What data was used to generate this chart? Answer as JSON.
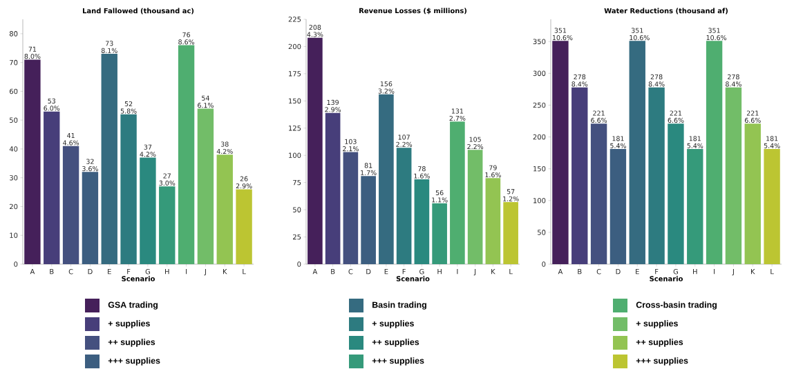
{
  "chart_data": [
    {
      "type": "bar",
      "title": "Land Fallowed (thousand ac)",
      "xlabel": "Scenario",
      "categories": [
        "A",
        "B",
        "C",
        "D",
        "E",
        "F",
        "G",
        "H",
        "I",
        "J",
        "K",
        "L"
      ],
      "ylim": [
        0,
        85
      ],
      "yticks": [
        0,
        10,
        20,
        30,
        40,
        50,
        60,
        70,
        80
      ],
      "legend": "bottom",
      "series": [
        {
          "name": "GSA trading",
          "color": "#45205a",
          "values": [
            71,
            null,
            null,
            null,
            null,
            null,
            null,
            null,
            null,
            null,
            null,
            null
          ],
          "value_labels": [
            "71 8.0%",
            null,
            null,
            null,
            null,
            null,
            null,
            null,
            null,
            null,
            null,
            null
          ]
        },
        {
          "name": "+ supplies",
          "color": "#473e7a",
          "values": [
            null,
            53,
            null,
            null,
            null,
            null,
            null,
            null,
            null,
            null,
            null,
            null
          ],
          "value_labels": [
            null,
            "53 6.0%",
            null,
            null,
            null,
            null,
            null,
            null,
            null,
            null,
            null,
            null
          ]
        },
        {
          "name": "++ supplies",
          "color": "#44507f",
          "values": [
            null,
            null,
            41,
            null,
            null,
            null,
            null,
            null,
            null,
            null,
            null,
            null
          ],
          "value_labels": [
            null,
            null,
            "41 4.6%",
            null,
            null,
            null,
            null,
            null,
            null,
            null,
            null,
            null
          ]
        },
        {
          "name": "+++ supplies",
          "color": "#3c5e80",
          "values": [
            null,
            null,
            null,
            32,
            null,
            null,
            null,
            null,
            null,
            null,
            null,
            null
          ],
          "value_labels": [
            null,
            null,
            null,
            "32 3.6%",
            null,
            null,
            null,
            null,
            null,
            null,
            null,
            null
          ]
        },
        {
          "name": "Basin trading",
          "color": "#356b80",
          "values": [
            null,
            null,
            null,
            null,
            73,
            null,
            null,
            null,
            null,
            null,
            null,
            null
          ],
          "value_labels": [
            null,
            null,
            null,
            null,
            "73 8.1%",
            null,
            null,
            null,
            null,
            null,
            null,
            null
          ]
        },
        {
          "name": "+ supplies",
          "color": "#2d7b80",
          "values": [
            null,
            null,
            null,
            null,
            null,
            52,
            null,
            null,
            null,
            null,
            null,
            null
          ],
          "value_labels": [
            null,
            null,
            null,
            null,
            null,
            "52 5.8%",
            null,
            null,
            null,
            null,
            null,
            null
          ]
        },
        {
          "name": "++ supplies",
          "color": "#2a897f",
          "values": [
            null,
            null,
            null,
            null,
            null,
            null,
            37,
            null,
            null,
            null,
            null,
            null
          ],
          "value_labels": [
            null,
            null,
            null,
            null,
            null,
            null,
            "37 4.2%",
            null,
            null,
            null,
            null,
            null
          ]
        },
        {
          "name": "+++ supplies",
          "color": "#359a7a",
          "values": [
            null,
            null,
            null,
            null,
            null,
            null,
            null,
            27,
            null,
            null,
            null,
            null
          ],
          "value_labels": [
            null,
            null,
            null,
            null,
            null,
            null,
            null,
            "27 3.0%",
            null,
            null,
            null,
            null
          ]
        },
        {
          "name": "Cross-basin trading",
          "color": "#4fae70",
          "values": [
            null,
            null,
            null,
            null,
            null,
            null,
            null,
            null,
            76,
            null,
            null,
            null
          ],
          "value_labels": [
            null,
            null,
            null,
            null,
            null,
            null,
            null,
            null,
            "76 8.6%",
            null,
            null,
            null
          ]
        },
        {
          "name": "+ supplies",
          "color": "#72bd68",
          "values": [
            null,
            null,
            null,
            null,
            null,
            null,
            null,
            null,
            null,
            54,
            null,
            null
          ],
          "value_labels": [
            null,
            null,
            null,
            null,
            null,
            null,
            null,
            null,
            null,
            "54 6.1%",
            null,
            null
          ]
        },
        {
          "name": "++ supplies",
          "color": "#93c452",
          "values": [
            null,
            null,
            null,
            null,
            null,
            null,
            null,
            null,
            null,
            null,
            38,
            null
          ],
          "value_labels": [
            null,
            null,
            null,
            null,
            null,
            null,
            null,
            null,
            null,
            null,
            "38 4.2%",
            null
          ]
        },
        {
          "name": "+++ supplies",
          "color": "#bcc532",
          "values": [
            null,
            null,
            null,
            null,
            null,
            null,
            null,
            null,
            null,
            null,
            null,
            26
          ],
          "value_labels": [
            null,
            null,
            null,
            null,
            null,
            null,
            null,
            null,
            null,
            null,
            null,
            "26 2.9%"
          ]
        }
      ]
    },
    {
      "type": "bar",
      "title": "Revenue Losses ($ millions)",
      "xlabel": "Scenario",
      "categories": [
        "A",
        "B",
        "C",
        "D",
        "E",
        "F",
        "G",
        "H",
        "I",
        "J",
        "K",
        "L"
      ],
      "ylim": [
        0,
        225
      ],
      "yticks": [
        0,
        25,
        50,
        75,
        100,
        125,
        150,
        175,
        200,
        225
      ],
      "series": [
        {
          "color": "#45205a",
          "values": [
            208,
            null,
            null,
            null,
            null,
            null,
            null,
            null,
            null,
            null,
            null,
            null
          ],
          "value_labels": [
            "208 4.3%",
            null,
            null,
            null,
            null,
            null,
            null,
            null,
            null,
            null,
            null,
            null
          ]
        },
        {
          "color": "#473e7a",
          "values": [
            null,
            139,
            null,
            null,
            null,
            null,
            null,
            null,
            null,
            null,
            null,
            null
          ],
          "value_labels": [
            null,
            "139 2.9%",
            null,
            null,
            null,
            null,
            null,
            null,
            null,
            null,
            null,
            null
          ]
        },
        {
          "color": "#44507f",
          "values": [
            null,
            null,
            103,
            null,
            null,
            null,
            null,
            null,
            null,
            null,
            null,
            null
          ],
          "value_labels": [
            null,
            null,
            "103 2.1%",
            null,
            null,
            null,
            null,
            null,
            null,
            null,
            null,
            null
          ]
        },
        {
          "color": "#3c5e80",
          "values": [
            null,
            null,
            null,
            81,
            null,
            null,
            null,
            null,
            null,
            null,
            null,
            null
          ],
          "value_labels": [
            null,
            null,
            null,
            "81 1.7%",
            null,
            null,
            null,
            null,
            null,
            null,
            null,
            null
          ]
        },
        {
          "color": "#356b80",
          "values": [
            null,
            null,
            null,
            null,
            156,
            null,
            null,
            null,
            null,
            null,
            null,
            null
          ],
          "value_labels": [
            null,
            null,
            null,
            null,
            "156 3.2%",
            null,
            null,
            null,
            null,
            null,
            null,
            null
          ]
        },
        {
          "color": "#2d7b80",
          "values": [
            null,
            null,
            null,
            null,
            null,
            107,
            null,
            null,
            null,
            null,
            null,
            null
          ],
          "value_labels": [
            null,
            null,
            null,
            null,
            null,
            "107 2.2%",
            null,
            null,
            null,
            null,
            null,
            null
          ]
        },
        {
          "color": "#2a897f",
          "values": [
            null,
            null,
            null,
            null,
            null,
            null,
            78,
            null,
            null,
            null,
            null,
            null
          ],
          "value_labels": [
            null,
            null,
            null,
            null,
            null,
            null,
            "78 1.6%",
            null,
            null,
            null,
            null,
            null
          ]
        },
        {
          "color": "#359a7a",
          "values": [
            null,
            null,
            null,
            null,
            null,
            null,
            null,
            56,
            null,
            null,
            null,
            null
          ],
          "value_labels": [
            null,
            null,
            null,
            null,
            null,
            null,
            null,
            "56 1.1%",
            null,
            null,
            null,
            null
          ]
        },
        {
          "color": "#4fae70",
          "values": [
            null,
            null,
            null,
            null,
            null,
            null,
            null,
            null,
            131,
            null,
            null,
            null
          ],
          "value_labels": [
            null,
            null,
            null,
            null,
            null,
            null,
            null,
            null,
            "131 2.7%",
            null,
            null,
            null
          ]
        },
        {
          "color": "#72bd68",
          "values": [
            null,
            null,
            null,
            null,
            null,
            null,
            null,
            null,
            null,
            105,
            null,
            null
          ],
          "value_labels": [
            null,
            null,
            null,
            null,
            null,
            null,
            null,
            null,
            null,
            "105 2.2%",
            null,
            null
          ]
        },
        {
          "color": "#93c452",
          "values": [
            null,
            null,
            null,
            null,
            null,
            null,
            null,
            null,
            null,
            null,
            79,
            null
          ],
          "value_labels": [
            null,
            null,
            null,
            null,
            null,
            null,
            null,
            null,
            null,
            null,
            "79 1.6%",
            null
          ]
        },
        {
          "color": "#bcc532",
          "values": [
            null,
            null,
            null,
            null,
            null,
            null,
            null,
            null,
            null,
            null,
            null,
            57
          ],
          "value_labels": [
            null,
            null,
            null,
            null,
            null,
            null,
            null,
            null,
            null,
            null,
            null,
            "57 1.2%"
          ]
        }
      ]
    },
    {
      "type": "bar",
      "title": "Water Reductions (thousand af)",
      "xlabel": "Scenario",
      "categories": [
        "A",
        "B",
        "C",
        "D",
        "E",
        "F",
        "G",
        "H",
        "I",
        "J",
        "K",
        "L"
      ],
      "ylim": [
        0,
        385
      ],
      "yticks": [
        0,
        50,
        100,
        150,
        200,
        250,
        300,
        350
      ],
      "series": [
        {
          "color": "#45205a",
          "values": [
            351,
            null,
            null,
            null,
            null,
            null,
            null,
            null,
            null,
            null,
            null,
            null
          ],
          "value_labels": [
            "351 10.6%",
            null,
            null,
            null,
            null,
            null,
            null,
            null,
            null,
            null,
            null,
            null
          ]
        },
        {
          "color": "#473e7a",
          "values": [
            null,
            278,
            null,
            null,
            null,
            null,
            null,
            null,
            null,
            null,
            null,
            null
          ],
          "value_labels": [
            null,
            "278 8.4%",
            null,
            null,
            null,
            null,
            null,
            null,
            null,
            null,
            null,
            null
          ]
        },
        {
          "color": "#44507f",
          "values": [
            null,
            null,
            221,
            null,
            null,
            null,
            null,
            null,
            null,
            null,
            null,
            null
          ],
          "value_labels": [
            null,
            null,
            "221 6.6%",
            null,
            null,
            null,
            null,
            null,
            null,
            null,
            null,
            null
          ]
        },
        {
          "color": "#3c5e80",
          "values": [
            null,
            null,
            null,
            181,
            null,
            null,
            null,
            null,
            null,
            null,
            null,
            null
          ],
          "value_labels": [
            null,
            null,
            null,
            "181 5.4%",
            null,
            null,
            null,
            null,
            null,
            null,
            null,
            null
          ]
        },
        {
          "color": "#356b80",
          "values": [
            null,
            null,
            null,
            null,
            351,
            null,
            null,
            null,
            null,
            null,
            null,
            null
          ],
          "value_labels": [
            null,
            null,
            null,
            null,
            "351 10.6%",
            null,
            null,
            null,
            null,
            null,
            null,
            null
          ]
        },
        {
          "color": "#2d7b80",
          "values": [
            null,
            null,
            null,
            null,
            null,
            278,
            null,
            null,
            null,
            null,
            null,
            null
          ],
          "value_labels": [
            null,
            null,
            null,
            null,
            null,
            "278 8.4%",
            null,
            null,
            null,
            null,
            null,
            null
          ]
        },
        {
          "color": "#2a897f",
          "values": [
            null,
            null,
            null,
            null,
            null,
            null,
            221,
            null,
            null,
            null,
            null,
            null
          ],
          "value_labels": [
            null,
            null,
            null,
            null,
            null,
            null,
            "221 6.6%",
            null,
            null,
            null,
            null,
            null
          ]
        },
        {
          "color": "#359a7a",
          "values": [
            null,
            null,
            null,
            null,
            null,
            null,
            null,
            181,
            null,
            null,
            null,
            null
          ],
          "value_labels": [
            null,
            null,
            null,
            null,
            null,
            null,
            null,
            "181 5.4%",
            null,
            null,
            null,
            null
          ]
        },
        {
          "color": "#4fae70",
          "values": [
            null,
            null,
            null,
            null,
            null,
            null,
            null,
            null,
            351,
            null,
            null,
            null
          ],
          "value_labels": [
            null,
            null,
            null,
            null,
            null,
            null,
            null,
            null,
            "351 10.6%",
            null,
            null,
            null
          ]
        },
        {
          "color": "#72bd68",
          "values": [
            null,
            null,
            null,
            null,
            null,
            null,
            null,
            null,
            null,
            278,
            null,
            null
          ],
          "value_labels": [
            null,
            null,
            null,
            null,
            null,
            null,
            null,
            null,
            null,
            "278 8.4%",
            null,
            null
          ]
        },
        {
          "color": "#93c452",
          "values": [
            null,
            null,
            null,
            null,
            null,
            null,
            null,
            null,
            null,
            null,
            221,
            null
          ],
          "value_labels": [
            null,
            null,
            null,
            null,
            null,
            null,
            null,
            null,
            null,
            null,
            "221 6.6%",
            null
          ]
        },
        {
          "color": "#bcc532",
          "values": [
            null,
            null,
            null,
            null,
            null,
            null,
            null,
            null,
            null,
            null,
            null,
            181
          ],
          "value_labels": [
            null,
            null,
            null,
            null,
            null,
            null,
            null,
            null,
            null,
            null,
            null,
            "181 5.4%"
          ]
        }
      ]
    }
  ]
}
